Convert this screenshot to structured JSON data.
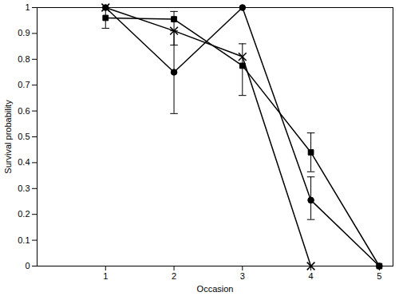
{
  "chart_data": {
    "type": "line",
    "x_label": "Occasion",
    "y_label": "Survival probability",
    "x": [
      1,
      2,
      3,
      4,
      5
    ],
    "series": [
      {
        "color": "#000000",
        "marker": "square",
        "line_style": "solid",
        "values": [
          0.96,
          0.955,
          0.775,
          0.44,
          0.0
        ],
        "lower": [
          0.92,
          0.855,
          0.66,
          0.365,
          null
        ],
        "upper": [
          1.0,
          0.985,
          0.86,
          0.515,
          null
        ]
      },
      {
        "color": "#000000",
        "marker": "circle",
        "line_style": "solid",
        "values": [
          1.0,
          0.75,
          1.0,
          0.255,
          0.0
        ],
        "lower": [
          null,
          0.59,
          null,
          0.18,
          null
        ],
        "upper": [
          null,
          0.91,
          null,
          0.345,
          null
        ]
      },
      {
        "color": "#000000",
        "marker": "x",
        "line_style": "solid",
        "values": [
          1.0,
          0.91,
          0.81,
          0.0,
          null
        ]
      }
    ],
    "xlim": [
      0,
      5.2
    ],
    "xticks": [
      1,
      2,
      3,
      4,
      5
    ],
    "ylim": [
      0,
      1
    ],
    "yticks": [
      0,
      0.1,
      0.2,
      0.3,
      0.4,
      0.5,
      0.6,
      0.7,
      0.8,
      0.9,
      1
    ],
    "grid": false
  }
}
